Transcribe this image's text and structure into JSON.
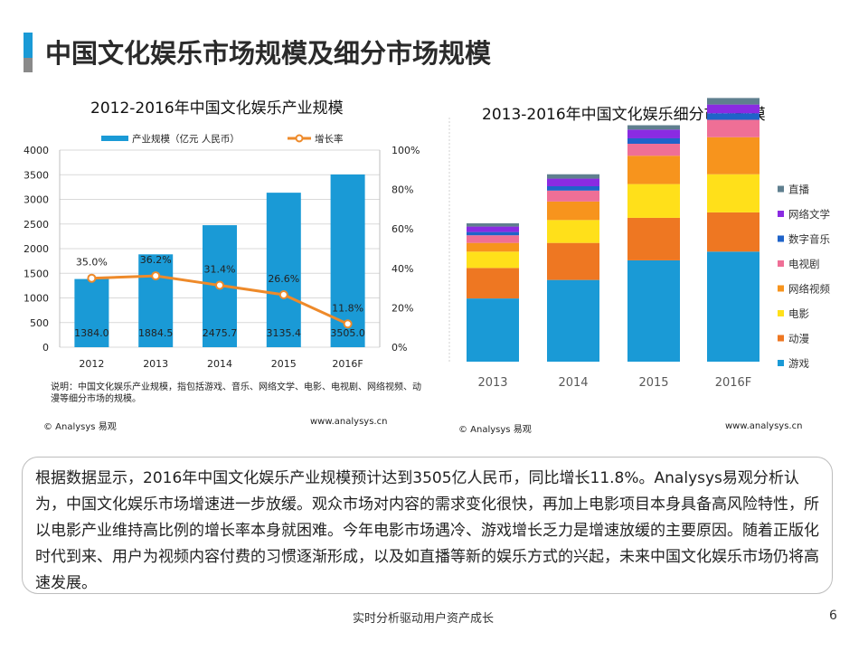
{
  "page": {
    "title": "中国文化娱乐市场规模及细分市场规模",
    "summary": "根据数据显示，2016年中国文化娱乐产业规模预计达到3505亿人民币，同比增长11.8%。Analysys易观分析认为，中国文化娱乐市场增速进一步放缓。观众市场对内容的需求变化很快，再加上电影项目本身具备高风险特性，所以电影产业维持高比例的增长率本身就困难。今年电影市场遇冷、游戏增长乏力是增速放缓的主要原因。随着正版化时代到来、用户为视频内容付费的习惯逐渐形成，以及如直播等新的娱乐方式的兴起，未来中国文化娱乐市场仍将高速发展。",
    "footer_slogan": "实时分析驱动用户资产成长",
    "page_number": "6",
    "colors": {
      "accent_blue": "#1a9ad6",
      "accent_gray": "#8a8a8a",
      "line_orange": "#ee8a2a"
    }
  },
  "left_panel": {
    "note": "说明：中国文化娱乐产业规模，指包括游戏、音乐、网络文学、电影、电视剧、网络视频、动漫等细分市场的规模。",
    "credit": "© Analysys 易观",
    "url": "www.analysys.cn"
  },
  "right_panel": {
    "credit": "© Analysys 易观",
    "url": "www.analysys.cn"
  },
  "chart_data": [
    {
      "type": "bar",
      "title": "2012-2016年中国文化娱乐产业规模",
      "categories": [
        "2012",
        "2013",
        "2014",
        "2015",
        "2016F"
      ],
      "series": [
        {
          "name": "产业规模（亿元 人民币）",
          "kind": "bar",
          "axis": "left",
          "color": "#1a9ad6",
          "values": [
            1384.0,
            1884.5,
            2475.7,
            3135.4,
            3505.0
          ],
          "labels": [
            "1384.0",
            "1884.5",
            "2475.7",
            "3135.4",
            "3505.0"
          ]
        },
        {
          "name": "增长率",
          "kind": "line",
          "axis": "right",
          "color": "#ee8a2a",
          "values": [
            35.0,
            36.2,
            31.4,
            26.6,
            11.8
          ],
          "labels": [
            "35.0%",
            "36.2%",
            "31.4%",
            "26.6%",
            "11.8%"
          ]
        }
      ],
      "y_left": {
        "range": [
          0,
          4000
        ],
        "ticks": [
          "0",
          "500",
          "1000",
          "1500",
          "2000",
          "2500",
          "3000",
          "3500",
          "4000"
        ]
      },
      "y_right": {
        "range": [
          0,
          100
        ],
        "ticks": [
          "0%",
          "20%",
          "40%",
          "60%",
          "80%",
          "100%"
        ]
      },
      "grid": true,
      "legend_position": "top"
    },
    {
      "type": "bar",
      "stacked": true,
      "title": "2013-2016年中国文化娱乐细分市场规模",
      "categories": [
        "2013",
        "2014",
        "2015",
        "2016F"
      ],
      "series": [
        {
          "name": "游戏",
          "color": "#1a9ad6",
          "values": [
            58,
            75,
            93,
            101
          ]
        },
        {
          "name": "动漫",
          "color": "#ee7722",
          "values": [
            28,
            34,
            39,
            36
          ]
        },
        {
          "name": "电影",
          "color": "#ffe01a",
          "values": [
            15,
            21,
            31,
            35
          ]
        },
        {
          "name": "网络视频",
          "color": "#f7941d",
          "values": [
            8,
            17,
            26,
            34
          ]
        },
        {
          "name": "电视剧",
          "color": "#ef6f96",
          "values": [
            7,
            10,
            11,
            16
          ]
        },
        {
          "name": "数字音乐",
          "color": "#1f63c9",
          "values": [
            3,
            4,
            5,
            6
          ]
        },
        {
          "name": "网络文学",
          "color": "#8a2be2",
          "values": [
            5,
            7,
            8,
            8
          ]
        },
        {
          "name": "直播",
          "color": "#5f7f8f",
          "values": [
            3,
            4,
            4,
            6
          ]
        }
      ],
      "y_axis_visible": false,
      "grid": false,
      "legend_position": "right"
    }
  ]
}
